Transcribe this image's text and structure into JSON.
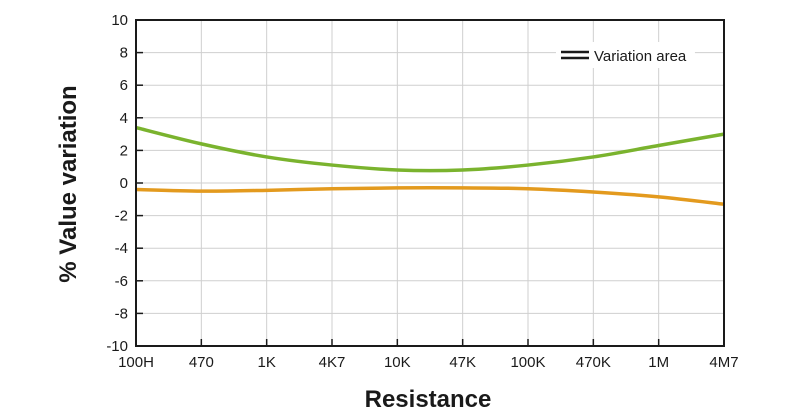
{
  "chart_data": {
    "type": "line",
    "xlabel": "Resistance",
    "ylabel": "% Value variation",
    "categories": [
      "100H",
      "470",
      "1K",
      "4K7",
      "10K",
      "47K",
      "100K",
      "470K",
      "1M",
      "4M7"
    ],
    "yticks": [
      "10",
      "8",
      "6",
      "4",
      "2",
      "0",
      "-2",
      "-4",
      "-6",
      "-8",
      "-10"
    ],
    "ylim": [
      -10,
      10
    ],
    "grid": true,
    "legend": {
      "label": "Variation area",
      "placement": "top-right"
    },
    "series": [
      {
        "color": "#7ab32e",
        "values": [
          3.4,
          2.4,
          1.6,
          1.1,
          0.8,
          0.8,
          1.1,
          1.6,
          2.3,
          3.0
        ]
      },
      {
        "color": "#e39a1e",
        "values": [
          -0.4,
          -0.5,
          -0.45,
          -0.35,
          -0.3,
          -0.3,
          -0.35,
          -0.55,
          -0.85,
          -1.3
        ]
      }
    ]
  }
}
